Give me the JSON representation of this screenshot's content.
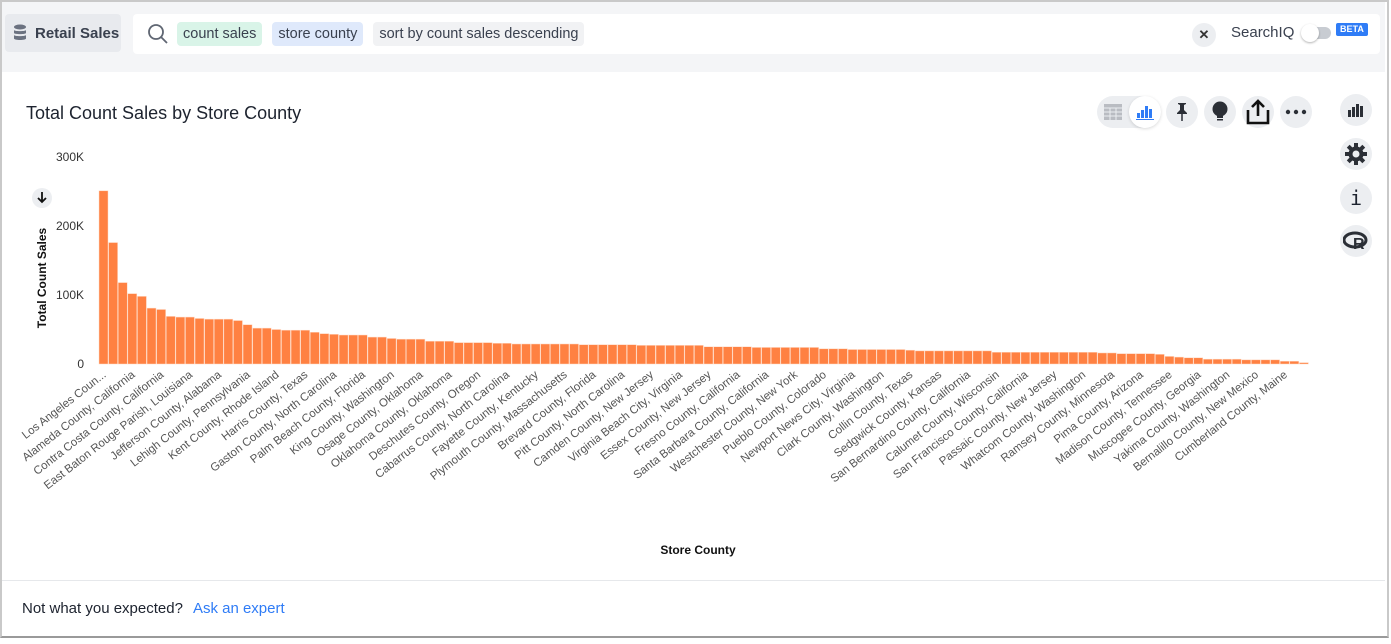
{
  "header": {
    "datasource": "Retail Sales",
    "search_tokens": [
      {
        "text": "count sales",
        "type": "measure"
      },
      {
        "text": "store county",
        "type": "attribute"
      },
      {
        "text": "sort by count sales descending",
        "type": "keyword"
      }
    ],
    "clear_icon": "close-icon",
    "searchiq_label": "SearchIQ",
    "searchiq_enabled": false,
    "beta_badge": "BETA"
  },
  "toolbar": {
    "icons": [
      "table-icon",
      "bar-chart-icon",
      "pin-icon",
      "lightbulb-icon",
      "share-icon",
      "more-icon"
    ],
    "active_view": "chart"
  },
  "side_icons": [
    "chart-type-icon",
    "gear-icon",
    "info-icon",
    "r-icon"
  ],
  "footer": {
    "prompt": "Not what you expected?",
    "link": "Ask an expert"
  },
  "colors": {
    "bar": "#ff8142",
    "accent": "#2f7cf6"
  },
  "chart_data": {
    "type": "bar",
    "title": "Total Count Sales by Store County",
    "xlabel": "Store County",
    "ylabel": "Total Count Sales",
    "ylim": [
      0,
      300000
    ],
    "yticks": [
      "0",
      "100K",
      "200K",
      "300K"
    ],
    "ytick_values": [
      0,
      100000,
      200000,
      300000
    ],
    "sort": "descending",
    "tick_label_every": 3,
    "tick_labels": [
      "Los Angeles Coun...",
      "Alameda County, California",
      "Contra Costa County, California",
      "East Baton Rouge Parish, Louisiana",
      "Jefferson County, Alabama",
      "Lehigh County, Pennsylvania",
      "Kent County, Rhode Island",
      "Harris County, Texas",
      "Gaston County, North Carolina",
      "Palm Beach County, Florida",
      "King County, Washington",
      "Osage County, Oklahoma",
      "Oklahoma County, Oklahoma",
      "Deschutes County, Oregon",
      "Cabarrus County, North Carolina",
      "Fayette County, Kentucky",
      "Plymouth County, Massachusetts",
      "Brevard County, Florida",
      "Pitt County, North Carolina",
      "Camden County, New Jersey",
      "Virginia Beach City, Virginia",
      "Essex County, New Jersey",
      "Fresno County, California",
      "Santa Barbara County, California",
      "Westchester County, New York",
      "Pueblo County, Colorado",
      "Newport News City, Virginia",
      "Clark County, Washington",
      "Collin County, Texas",
      "Sedgwick County, Kansas",
      "San Bernardino County, California",
      "Calumet County, Wisconsin",
      "San Francisco County, California",
      "Passaic County, New Jersey",
      "Whatcom County, Washington",
      "Ramsey County, Minnesota",
      "Pima County, Arizona",
      "Madison County, Tennessee",
      "Muscogee County, Georgia",
      "Yakima County, Washington",
      "Bernalillo County, New Mexico",
      "Cumberland County, Maine"
    ],
    "values": [
      251000,
      176000,
      118000,
      102000,
      98000,
      81000,
      79000,
      69000,
      68000,
      68000,
      66000,
      65000,
      65000,
      65000,
      63000,
      57000,
      52000,
      52000,
      50000,
      49000,
      49000,
      49000,
      46000,
      44000,
      43000,
      42000,
      42000,
      42000,
      39000,
      39000,
      37000,
      36000,
      36000,
      36000,
      33000,
      33000,
      33000,
      31000,
      31000,
      31000,
      31000,
      30000,
      30000,
      29000,
      29000,
      29000,
      29000,
      29000,
      29000,
      29000,
      28000,
      28000,
      28000,
      28000,
      28000,
      28000,
      27000,
      27000,
      27000,
      27000,
      27000,
      27000,
      27000,
      25000,
      25000,
      25000,
      25000,
      25000,
      24000,
      24000,
      24000,
      24000,
      24000,
      24000,
      24000,
      22000,
      22000,
      22000,
      21000,
      21000,
      21000,
      21000,
      21000,
      21000,
      20000,
      19000,
      19000,
      19000,
      19000,
      19000,
      19000,
      19000,
      19000,
      17000,
      17000,
      17000,
      17000,
      17000,
      17000,
      17000,
      17000,
      17000,
      17000,
      17000,
      16000,
      16000,
      15000,
      15000,
      15000,
      15000,
      14000,
      11000,
      10000,
      9000,
      9000,
      7000,
      7000,
      7000,
      7000,
      6000,
      6000,
      6000,
      6000,
      4000,
      4000,
      2000
    ]
  }
}
